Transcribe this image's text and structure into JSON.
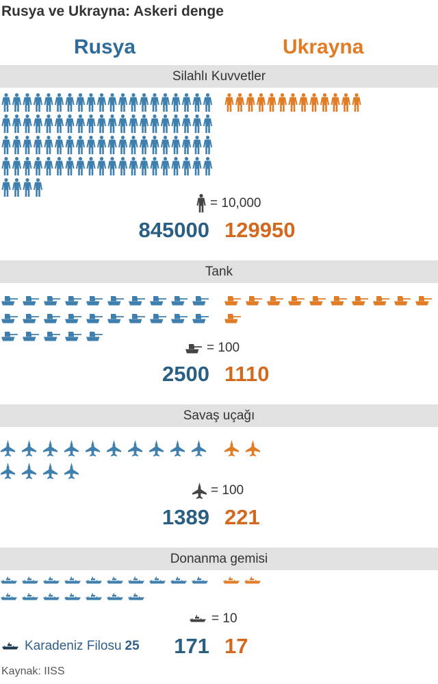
{
  "title": "Rusya ve Ukrayna: Askeri denge",
  "countries": {
    "russia": "Rusya",
    "ukraine": "Ukrayna"
  },
  "colors": {
    "russia": "#3f7fad",
    "ukraine": "#e07b26",
    "black_sea_fleet": "#1c3a4f",
    "legend_icon": "#444444",
    "band": "#e1e1e1"
  },
  "sections": {
    "armed_forces": {
      "label": "Silahlı Kuvvetler",
      "legend": "= 10,000",
      "icon": "soldier-icon",
      "russia": "845000",
      "ukraine": "129950"
    },
    "tanks": {
      "label": "Tank",
      "legend": "= 100",
      "icon": "tank-icon",
      "russia": "2500",
      "ukraine": "1110"
    },
    "aircraft": {
      "label": "Savaş uçağı",
      "legend": "= 100",
      "icon": "fighter-jet-icon",
      "russia": "1389",
      "ukraine": "221"
    },
    "ships": {
      "label": "Donanma gemisi",
      "legend": "= 10",
      "icon": "ship-icon",
      "russia": "171",
      "ukraine": "17"
    }
  },
  "fleet_note": {
    "label": "Karadeniz Filosu",
    "value": "25"
  },
  "source": "Kaynak: IISS",
  "chart_data": {
    "type": "pictogram",
    "title": "Rusya ve Ukrayna: Askeri denge",
    "series": [
      {
        "name": "Rusya"
      },
      {
        "name": "Ukrayna"
      }
    ],
    "categories": [
      "Silahlı Kuvvetler",
      "Tank",
      "Savaş uçağı",
      "Donanma gemisi"
    ],
    "rows": [
      {
        "category": "Silahlı Kuvvetler",
        "unit": 10000,
        "russia": 845000,
        "ukraine": 129950,
        "russia_icons": 84.5,
        "ukraine_icons": 13
      },
      {
        "category": "Tank",
        "unit": 100,
        "russia": 2500,
        "ukraine": 1110,
        "russia_icons": 25,
        "ukraine_icons": 11
      },
      {
        "category": "Savaş uçağı",
        "unit": 100,
        "russia": 1389,
        "ukraine": 221,
        "russia_icons": 14,
        "ukraine_icons": 2
      },
      {
        "category": "Donanma gemisi",
        "unit": 10,
        "russia": 171,
        "ukraine": 17,
        "russia_icons": 17,
        "ukraine_icons": 2,
        "russia_black_sea_fleet": 25
      }
    ]
  }
}
